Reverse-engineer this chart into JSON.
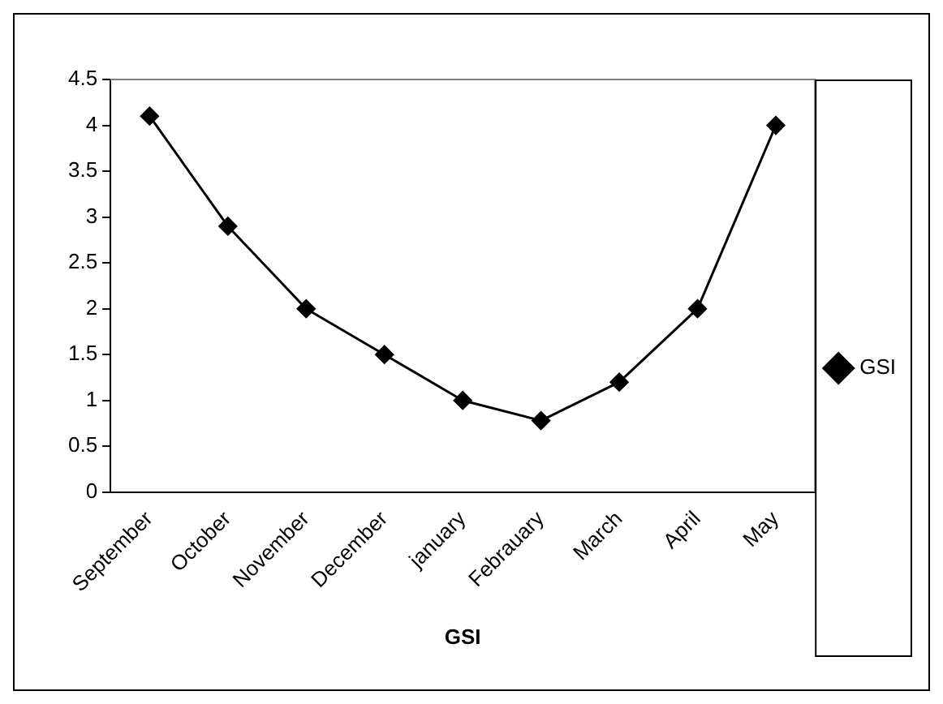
{
  "chart_data": {
    "type": "line",
    "xlabel": "GSI",
    "categories": [
      "September",
      "October",
      "November",
      "December",
      "january",
      "Febrauary",
      "March",
      "April",
      "May"
    ],
    "series": [
      {
        "name": "GSI",
        "color": "#000000",
        "values": [
          4.1,
          2.9,
          2.0,
          1.5,
          1.0,
          0.78,
          1.2,
          2.0,
          4.0
        ]
      }
    ],
    "ylim": [
      0,
      4.5
    ],
    "yticks": [
      0,
      0.5,
      1,
      1.5,
      2,
      2.5,
      3,
      3.5,
      4,
      4.5
    ],
    "grid": false,
    "legend": "right",
    "marker": "diamond",
    "line_style": "solid"
  }
}
